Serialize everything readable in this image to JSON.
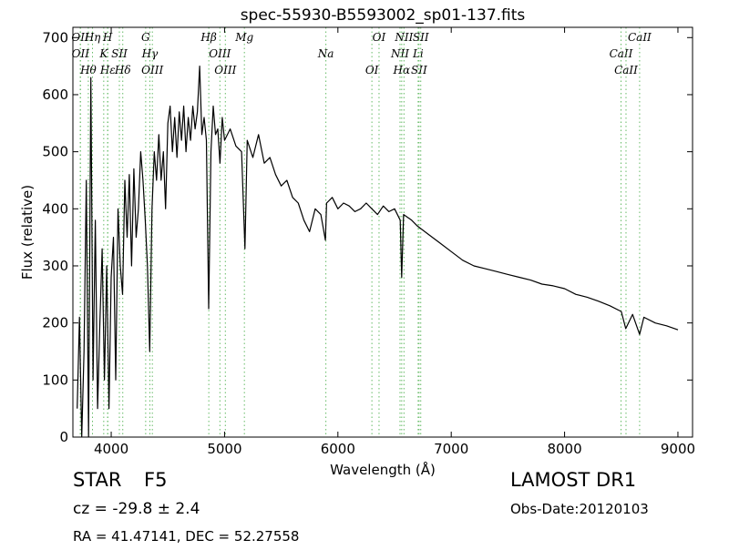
{
  "chart_data": {
    "type": "line",
    "title": "spec-55930-B5593002_sp01-137.fits",
    "xlabel": "Wavelength (Å)",
    "ylabel": "Flux (relative)",
    "color": "#000000",
    "x": [
      3700,
      3720,
      3740,
      3760,
      3780,
      3800,
      3820,
      3840,
      3860,
      3880,
      3900,
      3920,
      3940,
      3960,
      3980,
      4000,
      4020,
      4040,
      4060,
      4080,
      4100,
      4120,
      4140,
      4160,
      4180,
      4200,
      4220,
      4240,
      4260,
      4280,
      4300,
      4320,
      4340,
      4360,
      4380,
      4400,
      4420,
      4440,
      4460,
      4480,
      4500,
      4520,
      4540,
      4560,
      4580,
      4600,
      4620,
      4640,
      4660,
      4680,
      4700,
      4720,
      4740,
      4760,
      4780,
      4800,
      4820,
      4840,
      4860,
      4880,
      4900,
      4920,
      4940,
      4960,
      4980,
      5000,
      5050,
      5100,
      5150,
      5180,
      5200,
      5250,
      5300,
      5350,
      5400,
      5450,
      5500,
      5550,
      5600,
      5650,
      5700,
      5750,
      5800,
      5850,
      5890,
      5900,
      5950,
      6000,
      6050,
      6100,
      6150,
      6200,
      6250,
      6300,
      6350,
      6400,
      6450,
      6500,
      6550,
      6563,
      6580,
      6650,
      6700,
      6800,
      6900,
      7000,
      7100,
      7200,
      7300,
      7400,
      7500,
      7600,
      7700,
      7800,
      7900,
      8000,
      8100,
      8200,
      8300,
      8400,
      8500,
      8540,
      8600,
      8662,
      8700,
      8800,
      8900,
      9000
    ],
    "values": [
      50,
      210,
      0,
      150,
      450,
      0,
      630,
      100,
      380,
      50,
      200,
      330,
      100,
      300,
      50,
      280,
      350,
      100,
      400,
      300,
      250,
      450,
      350,
      460,
      300,
      470,
      350,
      400,
      500,
      450,
      380,
      300,
      150,
      400,
      500,
      450,
      530,
      450,
      500,
      400,
      550,
      580,
      500,
      560,
      490,
      570,
      520,
      580,
      500,
      560,
      520,
      580,
      540,
      570,
      650,
      530,
      560,
      520,
      225,
      500,
      580,
      530,
      540,
      480,
      560,
      520,
      540,
      510,
      500,
      330,
      520,
      490,
      530,
      480,
      490,
      460,
      440,
      450,
      420,
      410,
      380,
      360,
      400,
      390,
      345,
      410,
      420,
      400,
      410,
      405,
      395,
      400,
      410,
      400,
      390,
      405,
      395,
      400,
      380,
      280,
      390,
      380,
      370,
      355,
      340,
      325,
      310,
      300,
      295,
      290,
      285,
      280,
      275,
      268,
      265,
      260,
      250,
      245,
      238,
      230,
      220,
      190,
      215,
      180,
      210,
      200,
      195,
      188
    ],
    "xlim": [
      3662,
      9129
    ],
    "ylim": [
      0,
      718
    ],
    "xticks": [
      4000,
      5000,
      6000,
      7000,
      8000,
      9000
    ],
    "yticks": [
      0,
      100,
      200,
      300,
      400,
      500,
      600,
      700
    ],
    "lines_color": "#66bb66",
    "lines": [
      {
        "label": "OII",
        "x": 3727
      },
      {
        "label": "OII",
        "x": 3729
      },
      {
        "label": "Hθ",
        "x": 3798
      },
      {
        "label": "Hη",
        "x": 3835
      },
      {
        "label": "K",
        "x": 3934
      },
      {
        "label": "Hε",
        "x": 3970
      },
      {
        "label": "H",
        "x": 3968
      },
      {
        "label": "SII",
        "x": 4072
      },
      {
        "label": "Hδ",
        "x": 4102
      },
      {
        "label": "G",
        "x": 4304
      },
      {
        "label": "Hγ",
        "x": 4341
      },
      {
        "label": "OIII",
        "x": 4363
      },
      {
        "label": "Hβ",
        "x": 4861
      },
      {
        "label": "OIII",
        "x": 4959
      },
      {
        "label": "OIII",
        "x": 5007
      },
      {
        "label": "Mg",
        "x": 5175
      },
      {
        "label": "Na",
        "x": 5894
      },
      {
        "label": "OI",
        "x": 6300
      },
      {
        "label": "OI",
        "x": 6363
      },
      {
        "label": "NII",
        "x": 6548
      },
      {
        "label": "Hα",
        "x": 6563
      },
      {
        "label": "NII",
        "x": 6583
      },
      {
        "label": "Li",
        "x": 6708
      },
      {
        "label": "SII",
        "x": 6716
      },
      {
        "label": "SII",
        "x": 6731
      },
      {
        "label": "CaII",
        "x": 8498
      },
      {
        "label": "CaII",
        "x": 8542
      },
      {
        "label": "CaII",
        "x": 8662
      }
    ],
    "object_class": "STAR",
    "subclass": "F5",
    "redshift": "cz = -29.8 ± 2.4",
    "coordinates": "RA = 41.47141, DEC = 52.27558",
    "survey": "LAMOST DR1",
    "obs_date": "Obs-Date:20120103"
  }
}
